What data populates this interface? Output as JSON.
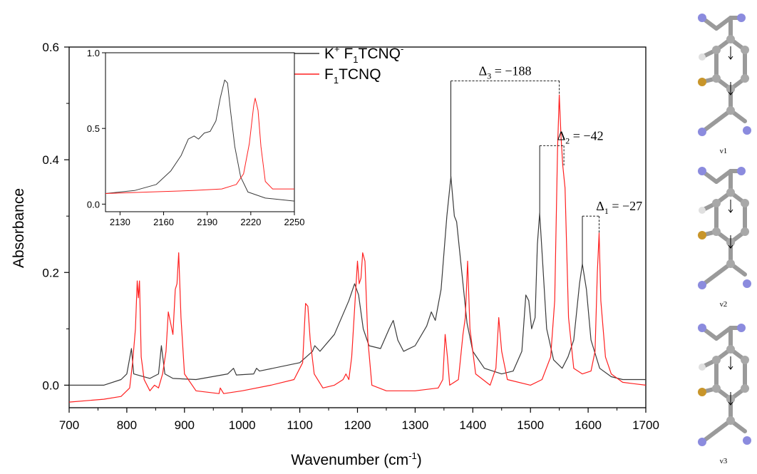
{
  "chart_data": {
    "type": "line",
    "xlabel": "Wavenumber (cm",
    "xlabel_sup": "-1",
    "xlabel_close": ")",
    "ylabel": "Absorbance",
    "xlim": [
      700,
      1700
    ],
    "ylim": [
      -0.04,
      0.6
    ],
    "xticks": [
      "700",
      "800",
      "900",
      "1000",
      "1100",
      "1200",
      "1300",
      "1400",
      "1500",
      "1600",
      "1700"
    ],
    "yticks": [
      "0.0",
      "0.2",
      "0.4",
      "0.6"
    ],
    "legend": [
      {
        "base": "K",
        "sup": "+",
        "mid": " F",
        "sub": "1",
        "tail": "TCNQ",
        "sup2": "-",
        "color": "#3a3a3a"
      },
      {
        "base": "F",
        "sub": "1",
        "tail": "TCNQ",
        "color": "#ff2020"
      }
    ],
    "series": [
      {
        "color": "#3a3a3a",
        "points": [
          [
            700,
            0.0
          ],
          [
            760,
            0.0
          ],
          [
            790,
            0.01
          ],
          [
            800,
            0.02
          ],
          [
            808,
            0.065
          ],
          [
            812,
            0.02
          ],
          [
            840,
            0.012
          ],
          [
            855,
            0.02
          ],
          [
            860,
            0.07
          ],
          [
            866,
            0.02
          ],
          [
            880,
            0.012
          ],
          [
            920,
            0.01
          ],
          [
            975,
            0.02
          ],
          [
            985,
            0.03
          ],
          [
            990,
            0.018
          ],
          [
            1020,
            0.02
          ],
          [
            1025,
            0.03
          ],
          [
            1030,
            0.025
          ],
          [
            1100,
            0.04
          ],
          [
            1122,
            0.06
          ],
          [
            1126,
            0.07
          ],
          [
            1135,
            0.06
          ],
          [
            1160,
            0.09
          ],
          [
            1185,
            0.15
          ],
          [
            1195,
            0.18
          ],
          [
            1202,
            0.16
          ],
          [
            1210,
            0.1
          ],
          [
            1220,
            0.07
          ],
          [
            1240,
            0.065
          ],
          [
            1255,
            0.1
          ],
          [
            1262,
            0.115
          ],
          [
            1270,
            0.08
          ],
          [
            1280,
            0.06
          ],
          [
            1300,
            0.07
          ],
          [
            1320,
            0.105
          ],
          [
            1328,
            0.13
          ],
          [
            1335,
            0.115
          ],
          [
            1345,
            0.17
          ],
          [
            1355,
            0.3
          ],
          [
            1362,
            0.37
          ],
          [
            1368,
            0.3
          ],
          [
            1372,
            0.29
          ],
          [
            1380,
            0.21
          ],
          [
            1390,
            0.11
          ],
          [
            1400,
            0.06
          ],
          [
            1420,
            0.03
          ],
          [
            1450,
            0.02
          ],
          [
            1470,
            0.025
          ],
          [
            1485,
            0.06
          ],
          [
            1492,
            0.16
          ],
          [
            1497,
            0.15
          ],
          [
            1502,
            0.1
          ],
          [
            1508,
            0.12
          ],
          [
            1512,
            0.25
          ],
          [
            1516,
            0.305
          ],
          [
            1521,
            0.22
          ],
          [
            1528,
            0.1
          ],
          [
            1540,
            0.045
          ],
          [
            1555,
            0.03
          ],
          [
            1565,
            0.05
          ],
          [
            1575,
            0.08
          ],
          [
            1585,
            0.18
          ],
          [
            1590,
            0.215
          ],
          [
            1597,
            0.17
          ],
          [
            1605,
            0.08
          ],
          [
            1620,
            0.03
          ],
          [
            1640,
            0.015
          ],
          [
            1660,
            0.01
          ],
          [
            1700,
            0.01
          ]
        ]
      },
      {
        "color": "#ff2020",
        "points": [
          [
            700,
            -0.03
          ],
          [
            760,
            -0.025
          ],
          [
            790,
            -0.02
          ],
          [
            805,
            -0.005
          ],
          [
            810,
            0.04
          ],
          [
            815,
            0.1
          ],
          [
            818,
            0.185
          ],
          [
            820,
            0.155
          ],
          [
            822,
            0.185
          ],
          [
            825,
            0.05
          ],
          [
            830,
            0.01
          ],
          [
            840,
            -0.01
          ],
          [
            848,
            0.0
          ],
          [
            855,
            -0.005
          ],
          [
            862,
            0.02
          ],
          [
            868,
            0.06
          ],
          [
            872,
            0.13
          ],
          [
            876,
            0.11
          ],
          [
            880,
            0.09
          ],
          [
            884,
            0.17
          ],
          [
            887,
            0.18
          ],
          [
            890,
            0.235
          ],
          [
            894,
            0.12
          ],
          [
            900,
            0.02
          ],
          [
            920,
            -0.01
          ],
          [
            960,
            -0.015
          ],
          [
            962,
            -0.005
          ],
          [
            968,
            -0.015
          ],
          [
            1000,
            -0.01
          ],
          [
            1050,
            0.0
          ],
          [
            1090,
            0.01
          ],
          [
            1105,
            0.04
          ],
          [
            1110,
            0.145
          ],
          [
            1114,
            0.14
          ],
          [
            1118,
            0.08
          ],
          [
            1125,
            0.02
          ],
          [
            1140,
            -0.005
          ],
          [
            1160,
            0.0
          ],
          [
            1175,
            0.01
          ],
          [
            1180,
            0.02
          ],
          [
            1185,
            0.01
          ],
          [
            1190,
            0.05
          ],
          [
            1200,
            0.22
          ],
          [
            1203,
            0.18
          ],
          [
            1206,
            0.19
          ],
          [
            1209,
            0.235
          ],
          [
            1213,
            0.22
          ],
          [
            1218,
            0.08
          ],
          [
            1225,
            0.0
          ],
          [
            1250,
            -0.01
          ],
          [
            1300,
            -0.01
          ],
          [
            1340,
            -0.005
          ],
          [
            1348,
            0.01
          ],
          [
            1352,
            0.09
          ],
          [
            1356,
            0.05
          ],
          [
            1360,
            0.0
          ],
          [
            1375,
            0.01
          ],
          [
            1383,
            0.09
          ],
          [
            1387,
            0.12
          ],
          [
            1391,
            0.22
          ],
          [
            1395,
            0.1
          ],
          [
            1405,
            0.02
          ],
          [
            1430,
            0.0
          ],
          [
            1440,
            0.03
          ],
          [
            1445,
            0.12
          ],
          [
            1450,
            0.06
          ],
          [
            1460,
            0.01
          ],
          [
            1500,
            0.0
          ],
          [
            1520,
            0.01
          ],
          [
            1535,
            0.05
          ],
          [
            1542,
            0.15
          ],
          [
            1547,
            0.42
          ],
          [
            1550,
            0.515
          ],
          [
            1553,
            0.44
          ],
          [
            1556,
            0.39
          ],
          [
            1560,
            0.35
          ],
          [
            1566,
            0.12
          ],
          [
            1575,
            0.03
          ],
          [
            1590,
            0.02
          ],
          [
            1605,
            0.025
          ],
          [
            1612,
            0.06
          ],
          [
            1616,
            0.2
          ],
          [
            1619,
            0.27
          ],
          [
            1622,
            0.15
          ],
          [
            1630,
            0.05
          ],
          [
            1640,
            0.02
          ],
          [
            1660,
            0.005
          ],
          [
            1700,
            0.0
          ]
        ]
      }
    ],
    "annotations": [
      {
        "delta": "3",
        "value": " = −188",
        "x_left": 1362,
        "x_right": 1550,
        "y_top": 0.54,
        "y_left_end": 0.37,
        "y_right_end": 0.515
      },
      {
        "delta": "2",
        "value": " = −42",
        "x_left": 1516,
        "x_right": 1558,
        "y_top": 0.425,
        "y_left_end": 0.305,
        "y_right_end": 0.39
      },
      {
        "delta": "1",
        "value": " = −27",
        "x_left": 1590,
        "x_right": 1619,
        "y_top": 0.3,
        "y_left_end": 0.215,
        "y_right_end": 0.27
      }
    ],
    "inset": {
      "xlim": [
        2120,
        2250
      ],
      "ylim": [
        -0.05,
        1.0
      ],
      "xticks": [
        "2130",
        "2160",
        "2190",
        "2220",
        "2250"
      ],
      "yticks": [
        "0.0",
        "0.5",
        "1.0"
      ],
      "series": [
        {
          "color": "#3a3a3a",
          "points": [
            [
              2120,
              0.07
            ],
            [
              2140,
              0.09
            ],
            [
              2155,
              0.13
            ],
            [
              2165,
              0.22
            ],
            [
              2172,
              0.32
            ],
            [
              2177,
              0.43
            ],
            [
              2181,
              0.45
            ],
            [
              2184,
              0.43
            ],
            [
              2188,
              0.47
            ],
            [
              2192,
              0.48
            ],
            [
              2196,
              0.55
            ],
            [
              2199,
              0.7
            ],
            [
              2202,
              0.82
            ],
            [
              2204,
              0.8
            ],
            [
              2206,
              0.62
            ],
            [
              2209,
              0.38
            ],
            [
              2213,
              0.18
            ],
            [
              2218,
              0.08
            ],
            [
              2230,
              0.04
            ],
            [
              2250,
              0.02
            ]
          ]
        },
        {
          "color": "#ff2020",
          "points": [
            [
              2120,
              0.07
            ],
            [
              2150,
              0.08
            ],
            [
              2180,
              0.09
            ],
            [
              2200,
              0.1
            ],
            [
              2210,
              0.13
            ],
            [
              2215,
              0.2
            ],
            [
              2219,
              0.4
            ],
            [
              2222,
              0.65
            ],
            [
              2223,
              0.7
            ],
            [
              2225,
              0.62
            ],
            [
              2227,
              0.38
            ],
            [
              2230,
              0.15
            ],
            [
              2235,
              0.1
            ],
            [
              2250,
              0.1
            ]
          ]
        }
      ]
    },
    "molecule_labels": [
      "ν1",
      "ν2",
      "ν3"
    ]
  }
}
